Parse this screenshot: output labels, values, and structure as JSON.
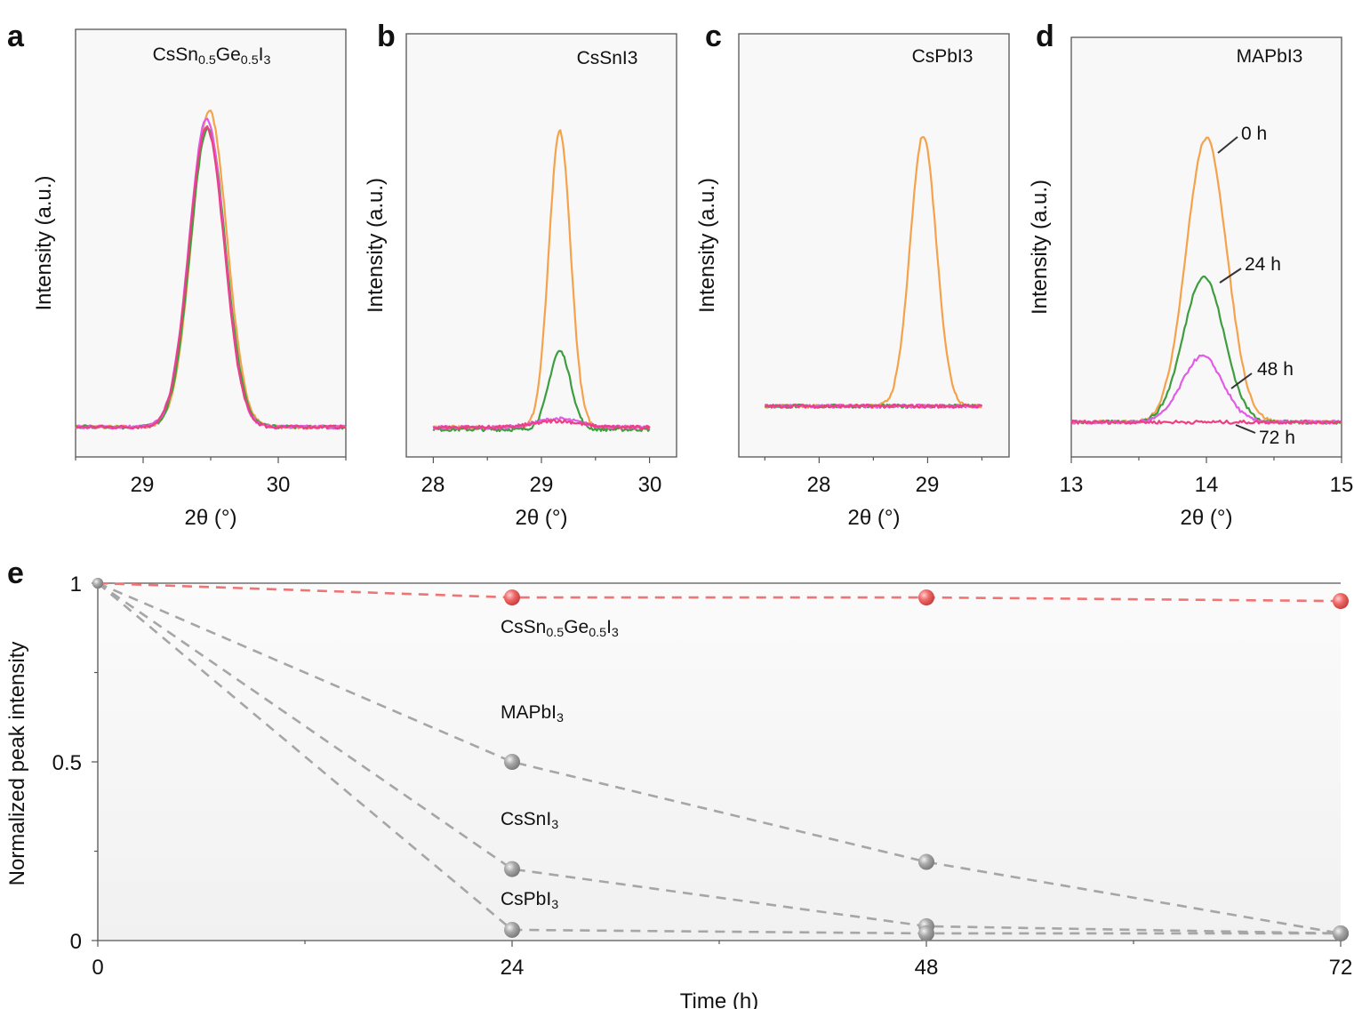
{
  "colors": {
    "orange": "#f4a24c",
    "green": "#3f9d3f",
    "violet": "#e05ce6",
    "pink": "#ec3f84",
    "red_marker": "#f06a6a",
    "gray_marker": "#a8a8a8",
    "red_line": "#ef7474",
    "gray_line": "#a6a6a6"
  },
  "chart_data": [
    {
      "panel": "a",
      "type": "line",
      "title": "CsSn0.5Ge0.5I3",
      "xlabel": "2θ (°)",
      "ylabel": "Intensity (a.u.)",
      "xlim": [
        28.5,
        30.5
      ],
      "xticks": [
        "29",
        "30"
      ],
      "ylim": [
        0,
        1
      ],
      "series": [
        {
          "color": "orange",
          "center": 29.49,
          "peak": 0.81,
          "sigma": 0.13,
          "baseline": 0.07,
          "x_range": [
            28.5,
            30.5
          ]
        },
        {
          "color": "green",
          "center": 29.48,
          "peak": 0.77,
          "sigma": 0.13,
          "baseline": 0.07,
          "x_range": [
            28.5,
            30.5
          ]
        },
        {
          "color": "violet",
          "center": 29.47,
          "peak": 0.79,
          "sigma": 0.13,
          "baseline": 0.07,
          "x_range": [
            28.5,
            30.5
          ]
        },
        {
          "color": "pink",
          "center": 29.47,
          "peak": 0.77,
          "sigma": 0.13,
          "baseline": 0.07,
          "x_range": [
            28.5,
            30.5
          ]
        }
      ]
    },
    {
      "panel": "b",
      "type": "line",
      "title": "CsSnI3",
      "xlabel": "2θ (°)",
      "ylabel": "Intensity (a.u.)",
      "xlim": [
        27.75,
        30.25
      ],
      "xticks": [
        "28",
        "29",
        "30"
      ],
      "ylim": [
        0,
        1
      ],
      "series": [
        {
          "color": "orange",
          "center": 29.17,
          "peak": 0.77,
          "sigma": 0.1,
          "baseline": 0.07,
          "x_range": [
            28,
            30
          ]
        },
        {
          "color": "green",
          "center": 29.17,
          "peak": 0.25,
          "sigma": 0.1,
          "baseline": 0.065,
          "x_range": [
            28,
            30
          ]
        },
        {
          "color": "violet",
          "center": 29.15,
          "peak": 0.09,
          "sigma": 0.2,
          "baseline": 0.07,
          "x_range": [
            28,
            30
          ]
        },
        {
          "color": "pink",
          "center": 29.15,
          "peak": 0.085,
          "sigma": 0.2,
          "baseline": 0.07,
          "x_range": [
            28,
            30
          ]
        }
      ]
    },
    {
      "panel": "c",
      "type": "line",
      "title": "CsPbI3",
      "xlabel": "2θ (°)",
      "ylabel": "Intensity (a.u.)",
      "xlim": [
        27.26,
        29.75
      ],
      "xticks": [
        "28",
        "29"
      ],
      "ylim": [
        0,
        1
      ],
      "series": [
        {
          "color": "orange",
          "center": 28.96,
          "peak": 0.76,
          "sigma": 0.12,
          "baseline": 0.12,
          "x_range": [
            27.5,
            29.5
          ]
        },
        {
          "color": "green",
          "center": 28.96,
          "peak": 0.12,
          "sigma": 0.12,
          "baseline": 0.12,
          "x_range": [
            27.5,
            29.5
          ]
        },
        {
          "color": "violet",
          "center": 28.96,
          "peak": 0.12,
          "sigma": 0.12,
          "baseline": 0.12,
          "x_range": [
            27.5,
            29.5
          ]
        },
        {
          "color": "pink",
          "center": 28.96,
          "peak": 0.12,
          "sigma": 0.12,
          "baseline": 0.12,
          "x_range": [
            27.5,
            29.5
          ]
        }
      ]
    },
    {
      "panel": "d",
      "type": "line",
      "title": "MAPbI3",
      "xlabel": "2θ (°)",
      "ylabel": "Intensity (a.u.)",
      "xlim": [
        13,
        15
      ],
      "xticks": [
        "13",
        "14",
        "15"
      ],
      "ylim": [
        0,
        1
      ],
      "series": [
        {
          "name": "0 h",
          "color": "orange",
          "center": 14.0,
          "peak": 0.76,
          "sigma": 0.15,
          "baseline": 0.083,
          "x_range": [
            13,
            15
          ]
        },
        {
          "name": "24 h",
          "color": "green",
          "center": 13.98,
          "peak": 0.43,
          "sigma": 0.15,
          "baseline": 0.083,
          "x_range": [
            13,
            15
          ]
        },
        {
          "name": "48 h",
          "color": "violet",
          "center": 13.97,
          "peak": 0.24,
          "sigma": 0.15,
          "baseline": 0.083,
          "x_range": [
            13,
            15
          ]
        },
        {
          "name": "72 h",
          "color": "pink",
          "center": 14.0,
          "peak": 0.083,
          "sigma": 0.15,
          "baseline": 0.083,
          "x_range": [
            13,
            15
          ]
        }
      ]
    },
    {
      "panel": "e",
      "type": "line",
      "xlabel": "Time (h)",
      "ylabel": "Normalized peak intensity",
      "xlim": [
        0,
        72
      ],
      "ylim": [
        0,
        1
      ],
      "xticks": [
        "0",
        "24",
        "48",
        "72"
      ],
      "yticks": [
        "0",
        "0.5",
        "1"
      ],
      "x": [
        0,
        24,
        48,
        72
      ],
      "series": [
        {
          "name": "CsSn0.5Ge0.5I3",
          "values": [
            1,
            0.96,
            0.96,
            0.95
          ],
          "color": "red"
        },
        {
          "name": "MAPbI3",
          "values": [
            1,
            0.5,
            0.22,
            0.02
          ],
          "color": "gray"
        },
        {
          "name": "CsSnI3",
          "values": [
            1,
            0.2,
            0.04,
            0.02
          ],
          "color": "gray"
        },
        {
          "name": "CsPbI3",
          "values": [
            1,
            0.03,
            0.02,
            0.02
          ],
          "color": "gray"
        }
      ]
    }
  ]
}
